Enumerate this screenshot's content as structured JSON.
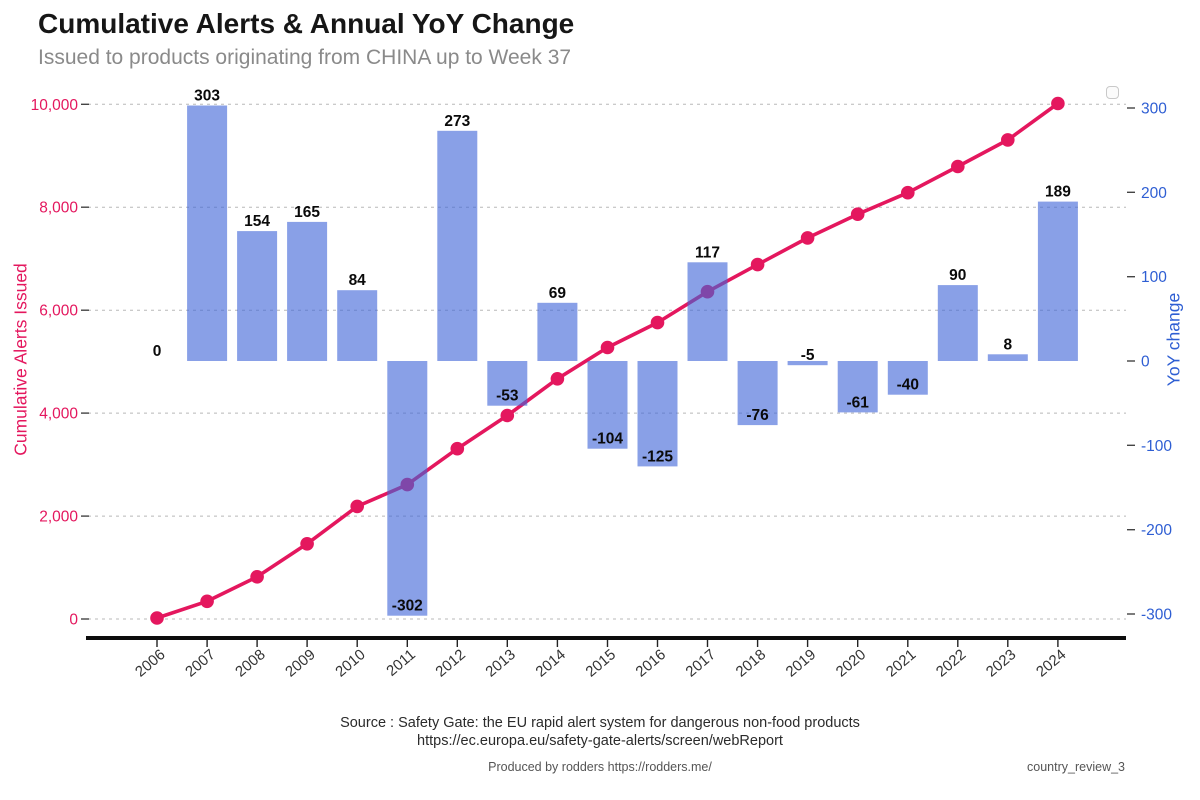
{
  "header": {
    "title": "Cumulative Alerts & Annual YoY Change",
    "subtitle": "Issued to products originating from CHINA up to Week 37"
  },
  "footer": {
    "source_line1": "Source : Safety Gate: the EU rapid alert system for dangerous non-food products",
    "source_line2": "https://ec.europa.eu/safety-gate-alerts/screen/webReport",
    "produced_by": "Produced by rodders https://rodders.me/",
    "doc_ref": "country_review_3"
  },
  "chart_data": {
    "type": "combo-bar-line",
    "title": "Cumulative Alerts & Annual YoY Change",
    "subtitle": "Issued to products originating from CHINA up to Week 37",
    "categories": [
      "2006",
      "2007",
      "2008",
      "2009",
      "2010",
      "2011",
      "2012",
      "2013",
      "2014",
      "2015",
      "2016",
      "2017",
      "2018",
      "2019",
      "2020",
      "2021",
      "2022",
      "2023",
      "2024"
    ],
    "series": [
      {
        "name": "YoY change",
        "type": "bar",
        "axis": "right",
        "values": [
          0,
          303,
          154,
          165,
          84,
          -302,
          273,
          -53,
          69,
          -104,
          -125,
          117,
          -76,
          -5,
          -61,
          -40,
          90,
          8,
          189
        ]
      },
      {
        "name": "Cumulative Alerts Issued",
        "type": "line",
        "axis": "left",
        "values": [
          20,
          343,
          820,
          1462,
          2188,
          2612,
          3309,
          3953,
          4666,
          5275,
          5759,
          6360,
          6885,
          7405,
          7864,
          8283,
          8792,
          9309,
          10015
        ]
      }
    ],
    "left_axis": {
      "label": "Cumulative Alerts Issued",
      "range": [
        0,
        10000
      ],
      "tick_values": [
        0,
        2000,
        4000,
        6000,
        8000,
        10000
      ],
      "tick_labels": [
        "0",
        "2,000",
        "4,000",
        "6,000",
        "8,000",
        "10,000"
      ],
      "color": "#e4175e"
    },
    "right_axis": {
      "label": "YoY change",
      "range": [
        -300,
        300
      ],
      "tick_values": [
        300,
        200,
        100,
        0,
        -100,
        -200,
        -300
      ],
      "tick_labels": [
        "300",
        "200",
        "100",
        "0",
        "-100",
        "-200",
        "-300"
      ],
      "color": "#2e5ed3"
    },
    "grid": "dashed-horizontal-left-ticks-only",
    "legend": {
      "position": "top-right",
      "empty": true
    },
    "colors": {
      "bar": "#4066d8",
      "bar_opacity": 0.62,
      "line": "#e4175e",
      "grid": "#b8b8b8",
      "axis_line": "#0d0d0d",
      "bar_label": "#0a0a0a",
      "year_label": "#333333",
      "tick_mark": "#444444"
    }
  }
}
